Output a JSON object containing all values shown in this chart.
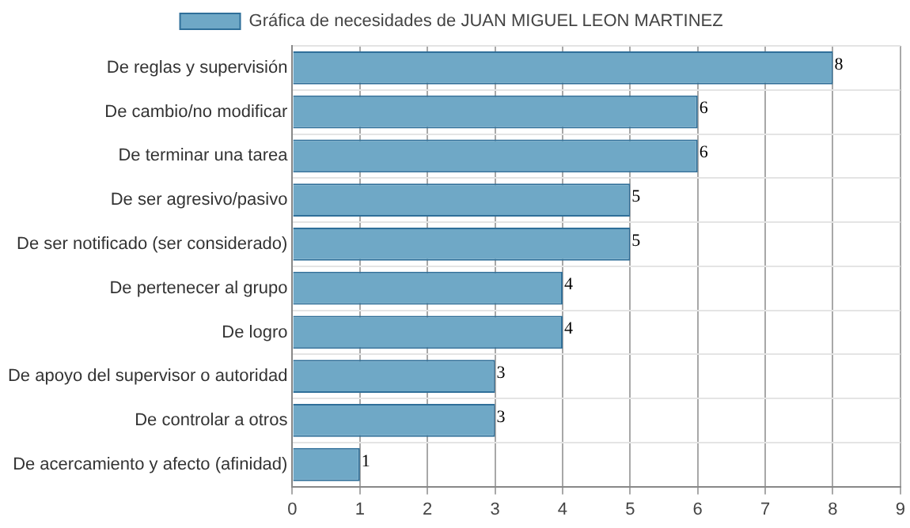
{
  "chart_data": {
    "type": "bar",
    "orientation": "horizontal",
    "categories": [
      "De reglas y supervisión",
      "De cambio/no modificar",
      "De terminar una tarea",
      "De ser agresivo/pasivo",
      "De ser notificado (ser considerado)",
      "De pertenecer al grupo",
      "De logro",
      "De apoyo del supervisor o autoridad",
      "De controlar a otros",
      "De acercamiento y afecto (afinidad)"
    ],
    "series": [
      {
        "name": "Gráfica de necesidades de JUAN MIGUEL LEON MARTINEZ",
        "color": "#6fa8c6",
        "values": [
          8,
          6,
          6,
          5,
          5,
          4,
          4,
          3,
          3,
          1
        ]
      }
    ],
    "xlim": [
      0,
      9
    ],
    "xticks": [
      0,
      1,
      2,
      3,
      4,
      5,
      6,
      7,
      8,
      9
    ],
    "grid": true,
    "legend": "top",
    "data_labels": true
  }
}
